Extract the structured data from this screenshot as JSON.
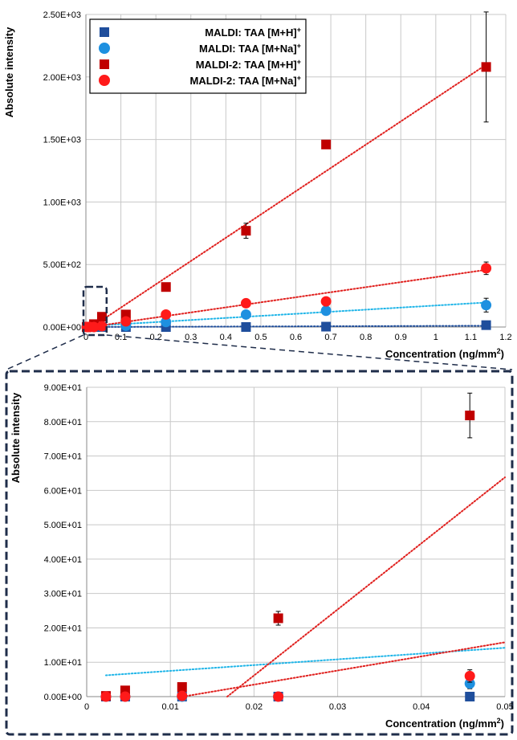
{
  "chart_data": [
    {
      "type": "scatter",
      "xlabel": "Concentration (ng/mm",
      "xlabel_sup": "2",
      "xlabel_tail": ")",
      "ylabel": "Absolute intensity",
      "xlim": [
        0,
        1.2
      ],
      "ylim": [
        0,
        2500
      ],
      "xticks": [
        "0",
        "0.1",
        "0.2",
        "0.3",
        "0.4",
        "0.5",
        "0.6",
        "0.7",
        "0.8",
        "0.9",
        "1",
        "1.1",
        "1.2"
      ],
      "yticks": [
        "0.00E+00",
        "5.00E+02",
        "1.00E+03",
        "1.50E+03",
        "2.00E+03",
        "2.50E+03"
      ],
      "grid": true,
      "legend_position": "top-left",
      "series": [
        {
          "name": "MALDI: TAA [M+H]",
          "name_sup": "+",
          "marker": "square",
          "color": "#1f4e9c",
          "points": [
            [
              0.0023,
              0
            ],
            [
              0.0046,
              0
            ],
            [
              0.0114,
              0
            ],
            [
              0.0229,
              0
            ],
            [
              0.0458,
              0
            ],
            [
              0.1144,
              0
            ],
            [
              0.2288,
              0
            ],
            [
              0.4576,
              0
            ],
            [
              0.6864,
              3
            ],
            [
              1.144,
              15
            ]
          ],
          "trend": {
            "color": "#1f4e9c",
            "x": [
              0,
              1.15
            ],
            "y": [
              0,
              10
            ]
          }
        },
        {
          "name": "MALDI: TAA [M+Na]",
          "name_sup": "+",
          "marker": "circle",
          "color": "#1e90e0",
          "points": [
            [
              0.0023,
              0
            ],
            [
              0.0046,
              0
            ],
            [
              0.0114,
              0
            ],
            [
              0.0229,
              0
            ],
            [
              0.0458,
              4
            ],
            [
              0.1144,
              10
            ],
            [
              0.2288,
              40
            ],
            [
              0.4576,
              100
            ],
            [
              0.6864,
              130
            ],
            [
              1.144,
              175
            ]
          ],
          "errors": [
            0,
            0,
            0,
            0,
            1,
            2,
            5,
            10,
            10,
            55
          ],
          "trend": {
            "color": "#1fb5e8",
            "x": [
              0,
              1.15
            ],
            "y": [
              6,
              197
            ]
          }
        },
        {
          "name": "MALDI-2: TAA [M+H]",
          "name_sup": "+",
          "marker": "square",
          "color": "#c00000",
          "points": [
            [
              0.0023,
              0
            ],
            [
              0.0046,
              2
            ],
            [
              0.0114,
              3
            ],
            [
              0.0229,
              23
            ],
            [
              0.0458,
              82
            ],
            [
              0.1144,
              100
            ],
            [
              0.2288,
              320
            ],
            [
              0.4576,
              770
            ],
            [
              0.6864,
              1460
            ],
            [
              1.144,
              2080
            ]
          ],
          "errors": [
            0,
            0,
            0,
            2,
            7,
            10,
            20,
            60,
            0,
            440
          ],
          "trend": {
            "color": "#e0201e",
            "x": [
              0.0165,
              1.15
            ],
            "y": [
              0,
              2110
            ]
          }
        },
        {
          "name": "MALDI-2: TAA [M+Na]",
          "name_sup": "+",
          "marker": "circle",
          "color": "#ff1a1a",
          "points": [
            [
              0.0023,
              0
            ],
            [
              0.0046,
              0
            ],
            [
              0.0114,
              0
            ],
            [
              0.0229,
              0
            ],
            [
              0.0458,
              6
            ],
            [
              0.1144,
              45
            ],
            [
              0.2288,
              100
            ],
            [
              0.4576,
              190
            ],
            [
              0.6864,
              205
            ],
            [
              1.144,
              470
            ]
          ],
          "errors": [
            0,
            0,
            0,
            0,
            2,
            5,
            5,
            10,
            10,
            50
          ],
          "trend": {
            "color": "#e0201e",
            "x": [
              0.0114,
              1.15
            ],
            "y": [
              0,
              460
            ]
          }
        }
      ]
    },
    {
      "type": "scatter",
      "xlabel": "Concentration (ng/mm",
      "xlabel_sup": "2",
      "xlabel_tail": ")",
      "ylabel": "Absolute intensity",
      "xlim": [
        0,
        0.05
      ],
      "ylim": [
        0,
        90
      ],
      "xticks": [
        "0",
        "0.01",
        "0.02",
        "0.03",
        "0.04",
        "0.05"
      ],
      "yticks": [
        "0.00E+00",
        "1.00E+01",
        "2.00E+01",
        "3.00E+01",
        "4.00E+01",
        "5.00E+01",
        "6.00E+01",
        "7.00E+01",
        "8.00E+01",
        "9.00E+01"
      ],
      "grid": true,
      "series": [
        {
          "name": "MALDI: TAA [M+H]",
          "marker": "square",
          "color": "#1f4e9c",
          "points": [
            [
              0.0023,
              0
            ],
            [
              0.0046,
              0
            ],
            [
              0.0114,
              0
            ],
            [
              0.0229,
              0
            ],
            [
              0.0458,
              0
            ]
          ]
        },
        {
          "name": "MALDI: TAA [M+Na]",
          "marker": "circle",
          "color": "#1e90e0",
          "points": [
            [
              0.0023,
              0
            ],
            [
              0.0046,
              0
            ],
            [
              0.0114,
              0
            ],
            [
              0.0229,
              0
            ],
            [
              0.0458,
              3.8
            ]
          ],
          "errors": [
            0,
            0,
            0,
            0,
            1.5
          ],
          "trend": {
            "color": "#1fb5e8",
            "x": [
              0.0023,
              0.05
            ],
            "y": [
              6.2,
              14.2
            ]
          }
        },
        {
          "name": "MALDI-2: TAA [M+H]",
          "marker": "square",
          "color": "#c00000",
          "points": [
            [
              0.0023,
              0.2
            ],
            [
              0.0046,
              1.8
            ],
            [
              0.0114,
              2.8
            ],
            [
              0.0229,
              22.8
            ],
            [
              0.0458,
              81.8
            ]
          ],
          "errors": [
            0,
            0,
            0,
            2,
            6.5
          ],
          "trend": {
            "color": "#e0201e",
            "x": [
              0.0168,
              0.05
            ],
            "y": [
              0,
              63.8
            ]
          }
        },
        {
          "name": "MALDI-2: TAA [M+Na]",
          "marker": "circle",
          "color": "#ff1a1a",
          "points": [
            [
              0.0023,
              0
            ],
            [
              0.0046,
              0
            ],
            [
              0.0114,
              0.2
            ],
            [
              0.0229,
              0
            ],
            [
              0.0458,
              6
            ]
          ],
          "errors": [
            0,
            0,
            0,
            0,
            1.8
          ],
          "trend": {
            "color": "#e0201e",
            "x": [
              0.0115,
              0.05
            ],
            "y": [
              0,
              15.8
            ]
          }
        }
      ]
    }
  ]
}
